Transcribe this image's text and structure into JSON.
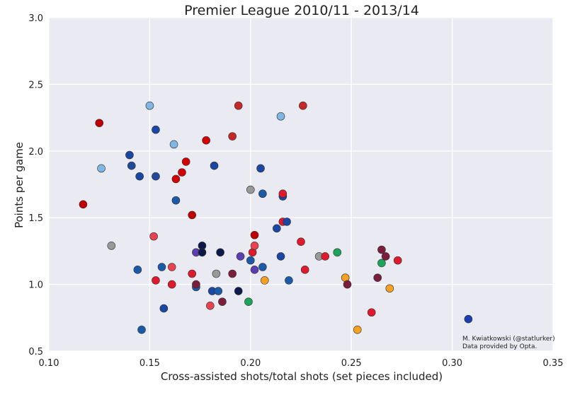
{
  "chart_data": {
    "type": "scatter",
    "title": "Premier League 2010/11 - 2013/14",
    "xlabel": "Cross-assisted shots/total shots (set pieces included)",
    "ylabel": "Points per game",
    "xlim": [
      0.1,
      0.35
    ],
    "ylim": [
      0.5,
      3.0
    ],
    "xticks": [
      0.1,
      0.15,
      0.2,
      0.25,
      0.3,
      0.35
    ],
    "xtick_labels": [
      "0.10",
      "0.15",
      "0.20",
      "0.25",
      "0.30",
      "0.35"
    ],
    "yticks": [
      0.5,
      1.0,
      1.5,
      2.0,
      2.5,
      3.0
    ],
    "ytick_labels": [
      "0.5",
      "1.0",
      "1.5",
      "2.0",
      "2.5",
      "3.0"
    ],
    "grid": true,
    "annotation": {
      "line1": "M. Kwiatkowski (@statlurker)",
      "line2": "Data provided by Opta.",
      "placement": "bottom-right"
    },
    "points": [
      {
        "x": 0.117,
        "y": 1.6,
        "color": "#c00000"
      },
      {
        "x": 0.125,
        "y": 2.21,
        "color": "#c00000"
      },
      {
        "x": 0.126,
        "y": 1.87,
        "color": "#7fb6e3"
      },
      {
        "x": 0.131,
        "y": 1.29,
        "color": "#999999"
      },
      {
        "x": 0.14,
        "y": 1.97,
        "color": "#1a47a3"
      },
      {
        "x": 0.141,
        "y": 1.89,
        "color": "#224a9c"
      },
      {
        "x": 0.144,
        "y": 1.11,
        "color": "#1b5aa8"
      },
      {
        "x": 0.145,
        "y": 1.81,
        "color": "#1a47a3"
      },
      {
        "x": 0.146,
        "y": 0.66,
        "color": "#1b5aa8"
      },
      {
        "x": 0.15,
        "y": 2.34,
        "color": "#7fb6e3"
      },
      {
        "x": 0.152,
        "y": 1.36,
        "color": "#e8414f"
      },
      {
        "x": 0.153,
        "y": 2.16,
        "color": "#1a47a3"
      },
      {
        "x": 0.153,
        "y": 1.81,
        "color": "#224a9c"
      },
      {
        "x": 0.153,
        "y": 1.03,
        "color": "#e01a2c"
      },
      {
        "x": 0.156,
        "y": 1.13,
        "color": "#1b5aa8"
      },
      {
        "x": 0.157,
        "y": 0.82,
        "color": "#1a47a3"
      },
      {
        "x": 0.161,
        "y": 1.0,
        "color": "#e01a2c"
      },
      {
        "x": 0.161,
        "y": 1.13,
        "color": "#e8414f"
      },
      {
        "x": 0.162,
        "y": 2.05,
        "color": "#7fb6e3"
      },
      {
        "x": 0.163,
        "y": 1.63,
        "color": "#1b5aa8"
      },
      {
        "x": 0.163,
        "y": 1.79,
        "color": "#d40000"
      },
      {
        "x": 0.166,
        "y": 1.84,
        "color": "#d40000"
      },
      {
        "x": 0.168,
        "y": 1.92,
        "color": "#d40000"
      },
      {
        "x": 0.171,
        "y": 1.52,
        "color": "#c00000"
      },
      {
        "x": 0.171,
        "y": 1.08,
        "color": "#e01a2c"
      },
      {
        "x": 0.173,
        "y": 0.98,
        "color": "#1b5aa8"
      },
      {
        "x": 0.173,
        "y": 1.0,
        "color": "#7b1e3c"
      },
      {
        "x": 0.173,
        "y": 1.24,
        "color": "#5a3fb0"
      },
      {
        "x": 0.176,
        "y": 1.29,
        "color": "#0b1a4a"
      },
      {
        "x": 0.176,
        "y": 1.24,
        "color": "#0b1a4a"
      },
      {
        "x": 0.178,
        "y": 2.08,
        "color": "#d40000"
      },
      {
        "x": 0.18,
        "y": 0.84,
        "color": "#e8414f"
      },
      {
        "x": 0.181,
        "y": 0.95,
        "color": "#1a47a3"
      },
      {
        "x": 0.182,
        "y": 1.89,
        "color": "#1a47a3"
      },
      {
        "x": 0.183,
        "y": 1.08,
        "color": "#999999"
      },
      {
        "x": 0.184,
        "y": 0.95,
        "color": "#1b5aa8"
      },
      {
        "x": 0.185,
        "y": 1.24,
        "color": "#0b1a4a"
      },
      {
        "x": 0.186,
        "y": 0.87,
        "color": "#7b1e3c"
      },
      {
        "x": 0.191,
        "y": 1.08,
        "color": "#7b1e3c"
      },
      {
        "x": 0.191,
        "y": 2.11,
        "color": "#c62828"
      },
      {
        "x": 0.194,
        "y": 2.34,
        "color": "#c62828"
      },
      {
        "x": 0.194,
        "y": 0.95,
        "color": "#0b1a4a"
      },
      {
        "x": 0.195,
        "y": 1.21,
        "color": "#5a3fb0"
      },
      {
        "x": 0.199,
        "y": 0.87,
        "color": "#1aa55a"
      },
      {
        "x": 0.2,
        "y": 1.18,
        "color": "#1b5aa8"
      },
      {
        "x": 0.2,
        "y": 1.71,
        "color": "#999999"
      },
      {
        "x": 0.201,
        "y": 1.24,
        "color": "#e01a2c"
      },
      {
        "x": 0.202,
        "y": 1.37,
        "color": "#c00000"
      },
      {
        "x": 0.202,
        "y": 1.29,
        "color": "#e8414f"
      },
      {
        "x": 0.202,
        "y": 1.11,
        "color": "#5a3fb0"
      },
      {
        "x": 0.205,
        "y": 1.87,
        "color": "#1a47a3"
      },
      {
        "x": 0.206,
        "y": 1.13,
        "color": "#1b5aa8"
      },
      {
        "x": 0.206,
        "y": 1.68,
        "color": "#1b5aa8"
      },
      {
        "x": 0.207,
        "y": 1.03,
        "color": "#f5a020"
      },
      {
        "x": 0.213,
        "y": 1.42,
        "color": "#1a47a3"
      },
      {
        "x": 0.215,
        "y": 2.26,
        "color": "#7fb6e3"
      },
      {
        "x": 0.215,
        "y": 1.21,
        "color": "#1a47a3"
      },
      {
        "x": 0.216,
        "y": 1.66,
        "color": "#1a47a3"
      },
      {
        "x": 0.216,
        "y": 1.47,
        "color": "#e01a2c"
      },
      {
        "x": 0.216,
        "y": 1.68,
        "color": "#e01a2c"
      },
      {
        "x": 0.218,
        "y": 1.47,
        "color": "#1a47a3"
      },
      {
        "x": 0.219,
        "y": 1.03,
        "color": "#1b5aa8"
      },
      {
        "x": 0.225,
        "y": 1.32,
        "color": "#e01a2c"
      },
      {
        "x": 0.226,
        "y": 2.34,
        "color": "#c62828"
      },
      {
        "x": 0.227,
        "y": 1.11,
        "color": "#e01a2c"
      },
      {
        "x": 0.234,
        "y": 1.21,
        "color": "#999999"
      },
      {
        "x": 0.237,
        "y": 1.21,
        "color": "#e01a2c"
      },
      {
        "x": 0.243,
        "y": 1.24,
        "color": "#1aa55a"
      },
      {
        "x": 0.247,
        "y": 1.05,
        "color": "#f5a020"
      },
      {
        "x": 0.248,
        "y": 1.0,
        "color": "#7b1e3c"
      },
      {
        "x": 0.253,
        "y": 0.66,
        "color": "#f5a020"
      },
      {
        "x": 0.26,
        "y": 0.79,
        "color": "#e01a2c"
      },
      {
        "x": 0.263,
        "y": 1.05,
        "color": "#7b1e3c"
      },
      {
        "x": 0.265,
        "y": 1.26,
        "color": "#7b1e3c"
      },
      {
        "x": 0.265,
        "y": 1.16,
        "color": "#1aa55a"
      },
      {
        "x": 0.267,
        "y": 1.21,
        "color": "#7b1e3c"
      },
      {
        "x": 0.269,
        "y": 0.97,
        "color": "#f5a020"
      },
      {
        "x": 0.273,
        "y": 1.18,
        "color": "#e01a2c"
      },
      {
        "x": 0.308,
        "y": 0.74,
        "color": "#1a3fb0"
      }
    ]
  },
  "colors": {
    "plot_background": "#eaeaf2",
    "grid": "#ffffff",
    "marker_edge": "#333333"
  }
}
